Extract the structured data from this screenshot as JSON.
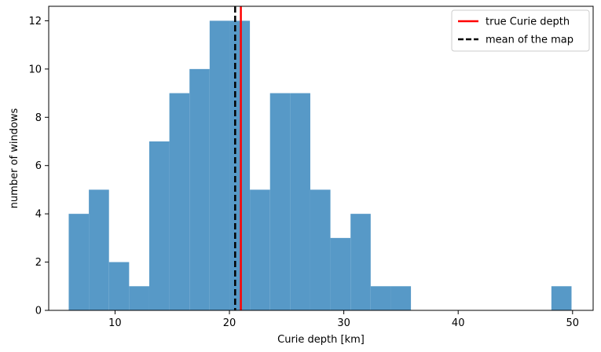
{
  "chart_data": {
    "type": "bar",
    "subtype": "histogram",
    "xlabel": "Curie depth [km]",
    "ylabel": "number of windows",
    "xlim": [
      4.2,
      51.8
    ],
    "ylim": [
      0,
      12.6
    ],
    "xticks": [
      10,
      20,
      30,
      40,
      50
    ],
    "yticks": [
      0,
      2,
      4,
      6,
      8,
      10,
      12
    ],
    "grid": false,
    "legend_position": "top-right",
    "bar_color": "#5799c7",
    "bins": [
      {
        "x0": 5.95,
        "x1": 7.71,
        "count": 4
      },
      {
        "x0": 7.71,
        "x1": 9.47,
        "count": 5
      },
      {
        "x0": 9.47,
        "x1": 11.23,
        "count": 2
      },
      {
        "x0": 11.23,
        "x1": 12.99,
        "count": 1
      },
      {
        "x0": 12.99,
        "x1": 14.75,
        "count": 7
      },
      {
        "x0": 14.75,
        "x1": 16.51,
        "count": 9
      },
      {
        "x0": 16.51,
        "x1": 18.27,
        "count": 10
      },
      {
        "x0": 18.27,
        "x1": 20.03,
        "count": 12
      },
      {
        "x0": 20.03,
        "x1": 21.79,
        "count": 12
      },
      {
        "x0": 21.79,
        "x1": 23.55,
        "count": 5
      },
      {
        "x0": 23.55,
        "x1": 25.31,
        "count": 9
      },
      {
        "x0": 25.31,
        "x1": 27.07,
        "count": 9
      },
      {
        "x0": 27.07,
        "x1": 28.83,
        "count": 5
      },
      {
        "x0": 28.83,
        "x1": 30.59,
        "count": 3
      },
      {
        "x0": 30.59,
        "x1": 32.35,
        "count": 4
      },
      {
        "x0": 32.35,
        "x1": 34.11,
        "count": 1
      },
      {
        "x0": 34.11,
        "x1": 35.87,
        "count": 1
      },
      {
        "x0": 48.15,
        "x1": 49.91,
        "count": 1
      }
    ],
    "reference_lines": [
      {
        "name": "true Curie depth",
        "x": 21.0,
        "color": "#ff0000",
        "style": "solid"
      },
      {
        "name": "mean of the map",
        "x": 20.5,
        "color": "#000000",
        "style": "dashed"
      }
    ]
  }
}
